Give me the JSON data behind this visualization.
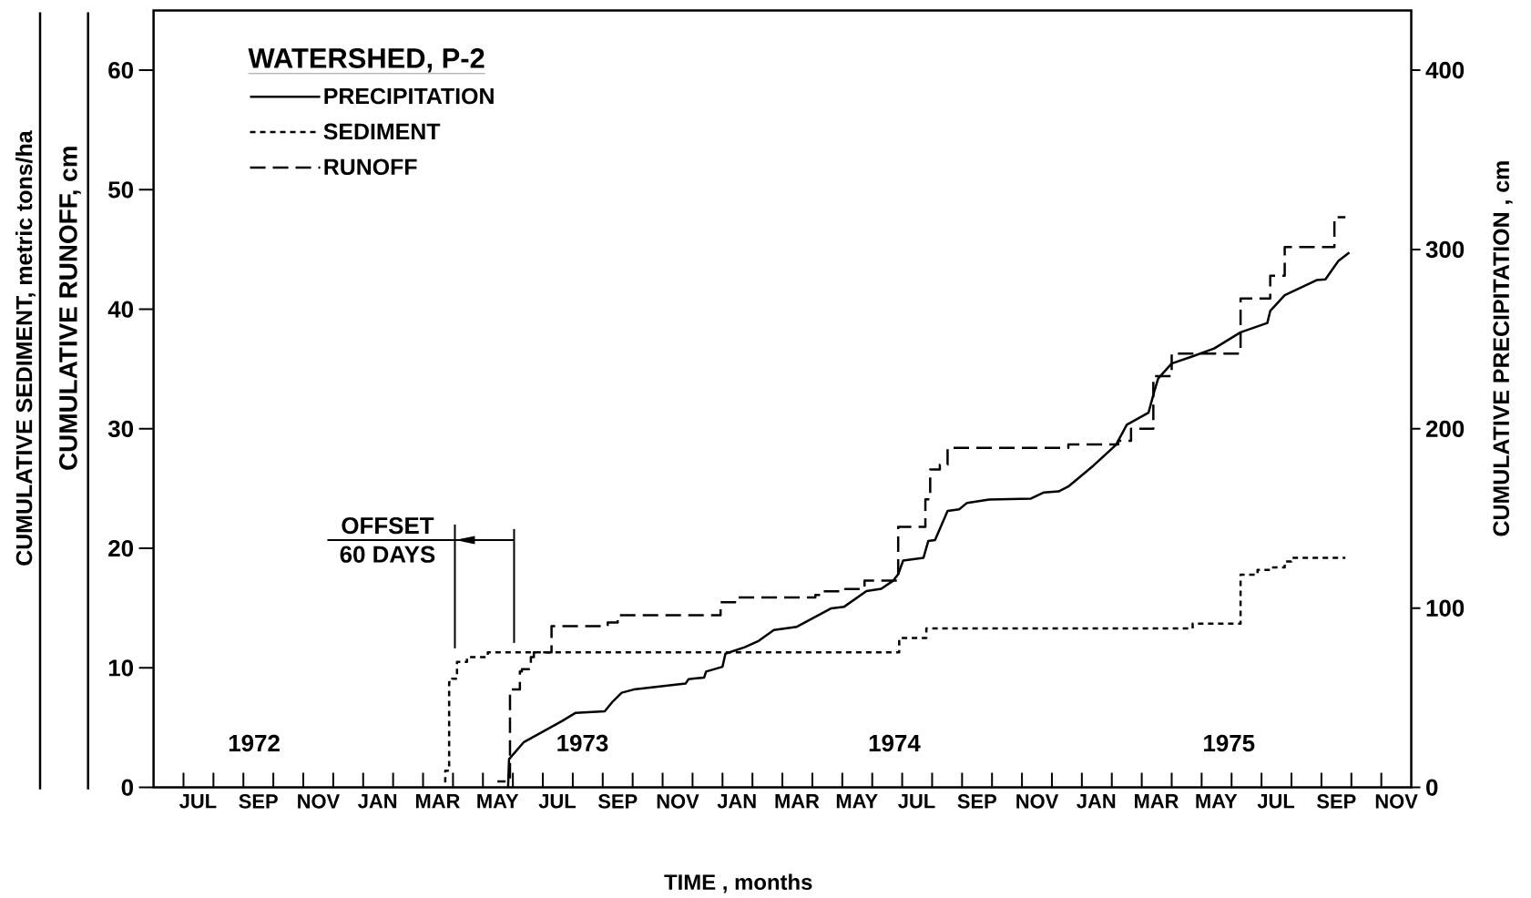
{
  "chart_data": {
    "type": "line",
    "legend": "top left",
    "legend_title": "WATERSHED, P-2",
    "xlabel": "TIME , months",
    "ylabel": "CUMULATIVE RUNOFF, cm",
    "y2label": "CUMULATIVE PRECIPITATION , cm",
    "y3label": "CUMULATIVE SEDIMENT, metric tons/ha",
    "xlim": [
      "1972-06-01",
      "1975-12-01"
    ],
    "ylim": [
      0,
      65
    ],
    "yticks": [
      0,
      10,
      20,
      30,
      40,
      50,
      60
    ],
    "y2lim": [
      0,
      433.3
    ],
    "y2ticks": [
      0,
      100,
      200,
      300,
      400
    ],
    "xticks": [
      {
        "value": "1972-07-01",
        "label": null
      },
      {
        "value": "1972-07-16",
        "label": "JUL"
      },
      {
        "value": "1972-08-01",
        "label": null
      },
      {
        "value": "1972-09-01",
        "label": null
      },
      {
        "value": "1972-09-16",
        "label": "SEP"
      },
      {
        "value": "1972-10-01",
        "label": null
      },
      {
        "value": "1972-11-01",
        "label": null
      },
      {
        "value": "1972-11-16",
        "label": "NOV"
      },
      {
        "value": "1972-12-01",
        "label": null
      },
      {
        "value": "1973-01-01",
        "label": null
      },
      {
        "value": "1973-01-16",
        "label": "JAN"
      },
      {
        "value": "1973-02-01",
        "label": null
      },
      {
        "value": "1973-03-01",
        "label": null
      },
      {
        "value": "1973-03-16",
        "label": "MAR"
      },
      {
        "value": "1973-04-01",
        "label": null
      },
      {
        "value": "1973-05-01",
        "label": null
      },
      {
        "value": "1973-05-16",
        "label": "MAY"
      },
      {
        "value": "1973-06-01",
        "label": null
      },
      {
        "value": "1973-07-01",
        "label": null
      },
      {
        "value": "1973-07-16",
        "label": "JUL"
      },
      {
        "value": "1973-08-01",
        "label": null
      },
      {
        "value": "1973-09-01",
        "label": null
      },
      {
        "value": "1973-09-16",
        "label": "SEP"
      },
      {
        "value": "1973-10-01",
        "label": null
      },
      {
        "value": "1973-11-01",
        "label": null
      },
      {
        "value": "1973-11-16",
        "label": "NOV"
      },
      {
        "value": "1973-12-01",
        "label": null
      },
      {
        "value": "1974-01-01",
        "label": null
      },
      {
        "value": "1974-01-16",
        "label": "JAN"
      },
      {
        "value": "1974-02-01",
        "label": null
      },
      {
        "value": "1974-03-01",
        "label": null
      },
      {
        "value": "1974-03-16",
        "label": "MAR"
      },
      {
        "value": "1974-04-01",
        "label": null
      },
      {
        "value": "1974-05-01",
        "label": null
      },
      {
        "value": "1974-05-16",
        "label": "MAY"
      },
      {
        "value": "1974-06-01",
        "label": null
      },
      {
        "value": "1974-07-01",
        "label": null
      },
      {
        "value": "1974-07-16",
        "label": "JUL"
      },
      {
        "value": "1974-08-01",
        "label": null
      },
      {
        "value": "1974-09-01",
        "label": null
      },
      {
        "value": "1974-09-16",
        "label": "SEP"
      },
      {
        "value": "1974-10-01",
        "label": null
      },
      {
        "value": "1974-11-01",
        "label": null
      },
      {
        "value": "1974-11-16",
        "label": "NOV"
      },
      {
        "value": "1974-12-01",
        "label": null
      },
      {
        "value": "1975-01-01",
        "label": null
      },
      {
        "value": "1975-01-16",
        "label": "JAN"
      },
      {
        "value": "1975-02-01",
        "label": null
      },
      {
        "value": "1975-03-01",
        "label": null
      },
      {
        "value": "1975-03-16",
        "label": "MAR"
      },
      {
        "value": "1975-04-01",
        "label": null
      },
      {
        "value": "1975-05-01",
        "label": null
      },
      {
        "value": "1975-05-16",
        "label": "MAY"
      },
      {
        "value": "1975-06-01",
        "label": null
      },
      {
        "value": "1975-07-01",
        "label": null
      },
      {
        "value": "1975-07-16",
        "label": "JUL"
      },
      {
        "value": "1975-08-01",
        "label": null
      },
      {
        "value": "1975-09-01",
        "label": null
      },
      {
        "value": "1975-09-16",
        "label": "SEP"
      },
      {
        "value": "1975-10-01",
        "label": null
      },
      {
        "value": "1975-11-01",
        "label": null
      },
      {
        "value": "1975-11-16",
        "label": "NOV"
      }
    ],
    "annotations": [
      "1972",
      "1973",
      "1974",
      "1975",
      "OFFSET",
      "60 DAYS"
    ],
    "series": [
      {
        "name": "PRECIPITATION",
        "type": "line",
        "axis": "y2",
        "color": "#000000",
        "line_style": "solid",
        "x": [
          "1973-05-27",
          "1973-05-28",
          "1973-06-12",
          "1973-07-21",
          "1973-08-04",
          "1973-09-03",
          "1973-09-11",
          "1973-09-20",
          "1973-10-02",
          "1973-11-24",
          "1973-11-27",
          "1973-12-13",
          "1973-12-15",
          "1974-01-01",
          "1974-01-04",
          "1974-01-24",
          "1974-02-07",
          "1974-02-21",
          "1974-03-16",
          "1974-04-20",
          "1974-05-03",
          "1974-05-26",
          "1974-06-10",
          "1974-06-22",
          "1974-06-27",
          "1974-07-02",
          "1974-07-23",
          "1974-07-28",
          "1974-08-04",
          "1974-08-17",
          "1974-08-29",
          "1974-09-06",
          "1974-09-28",
          "1974-11-10",
          "1974-11-23",
          "1974-12-08",
          "1974-12-18",
          "1975-01-13",
          "1975-02-05",
          "1975-02-15",
          "1975-03-08",
          "1975-03-14",
          "1975-03-18",
          "1975-04-01",
          "1975-04-22",
          "1975-05-14",
          "1975-06-10",
          "1975-07-07",
          "1975-07-10",
          "1975-07-25",
          "1975-08-27",
          "1975-09-05",
          "1975-09-18",
          "1975-09-29"
        ],
        "values": [
          0,
          15.7,
          25.3,
          37.1,
          41.6,
          42.5,
          47.9,
          52.8,
          54.6,
          57.9,
          60.4,
          61.3,
          64.6,
          67.3,
          74.6,
          78.2,
          81.8,
          87.8,
          89.6,
          99.9,
          100.8,
          109.5,
          110.8,
          115.3,
          118.9,
          126.5,
          128.0,
          137.4,
          137.9,
          154.2,
          155.1,
          158.7,
          160.5,
          161.1,
          164.5,
          165.1,
          167.8,
          179.5,
          191.1,
          202.3,
          209.0,
          220.9,
          228.0,
          236.4,
          240.4,
          244.8,
          253.8,
          259.0,
          265.7,
          274.5,
          282.9,
          283.3,
          293.6,
          298.3
        ]
      },
      {
        "name": "SEDIMENT",
        "type": "step",
        "axis": "y",
        "color": "#000000",
        "line_style": "dashed",
        "x": [
          "1973-03-19",
          "1973-03-24",
          "1973-03-28",
          "1973-03-31",
          "1973-04-05",
          "1973-04-15",
          "1973-05-06",
          "1974-06-28",
          "1974-07-26",
          "1975-04-22",
          "1975-06-10",
          "1975-06-27",
          "1975-07-13",
          "1975-07-25",
          "1975-08-01",
          "1975-09-25"
        ],
        "values": [
          0.5,
          1.4,
          8.8,
          9.1,
          10.5,
          10.9,
          11.3,
          12.5,
          13.3,
          13.7,
          17.8,
          18.2,
          18.4,
          18.9,
          19.2,
          19.2
        ]
      },
      {
        "name": "RUNOFF",
        "type": "step",
        "axis": "y",
        "color": "#000000",
        "line_style": "dashed",
        "x": [
          "1973-05-16",
          "1973-05-29",
          "1973-06-08",
          "1973-06-10",
          "1973-06-19",
          "1973-06-22",
          "1973-07-10",
          "1973-09-06",
          "1973-09-16",
          "1973-12-30",
          "1974-01-14",
          "1974-04-04",
          "1974-04-12",
          "1974-05-04",
          "1974-05-24",
          "1974-06-27",
          "1974-07-25",
          "1974-07-30",
          "1974-08-09",
          "1974-08-17",
          "1974-12-18",
          "1975-02-07",
          "1975-02-19",
          "1975-03-13",
          "1975-04-01",
          "1975-06-10",
          "1975-07-10",
          "1975-07-25",
          "1975-09-14",
          "1975-09-25"
        ],
        "values": [
          0.5,
          8.2,
          9.7,
          9.9,
          10.9,
          11.3,
          13.5,
          13.8,
          14.4,
          15.5,
          15.9,
          16.1,
          16.4,
          16.6,
          17.3,
          21.8,
          24.1,
          26.6,
          27.0,
          28.4,
          28.7,
          29.0,
          30.0,
          34.4,
          36.3,
          40.9,
          42.8,
          45.2,
          47.7,
          47.7
        ]
      }
    ]
  }
}
